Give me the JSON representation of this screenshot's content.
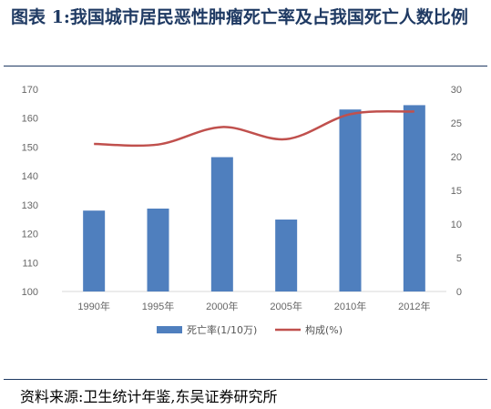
{
  "header": {
    "title": "图表 1:我国城市居民恶性肿瘤死亡率及占我国死亡人数比例"
  },
  "footer": {
    "source": "资料来源:卫生统计年鉴,东吴证券研究所"
  },
  "colors": {
    "bar": "#4f7fbe",
    "line": "#c0504d",
    "title": "#1f3a63",
    "grid": "#d9d9d9"
  },
  "chart_data": {
    "type": "bar",
    "categories": [
      "1990年",
      "1995年",
      "2000年",
      "2005年",
      "2010年",
      "2012年"
    ],
    "series": [
      {
        "name": "死亡率(1/10万)",
        "type": "bar",
        "axis": "left",
        "values": [
          128,
          128.7,
          146.5,
          124.9,
          163,
          164.5
        ]
      },
      {
        "name": "构成(%)",
        "type": "line",
        "axis": "right",
        "values": [
          21.9,
          21.8,
          24.4,
          22.6,
          26.3,
          26.7
        ]
      }
    ],
    "y_left": {
      "min": 100,
      "max": 170,
      "ticks": [
        100,
        110,
        120,
        130,
        140,
        150,
        160,
        170
      ]
    },
    "y_right": {
      "min": 0,
      "max": 30,
      "ticks": [
        0,
        5,
        10,
        15,
        20,
        25,
        30
      ]
    },
    "grid": false,
    "legend_position": "bottom"
  }
}
